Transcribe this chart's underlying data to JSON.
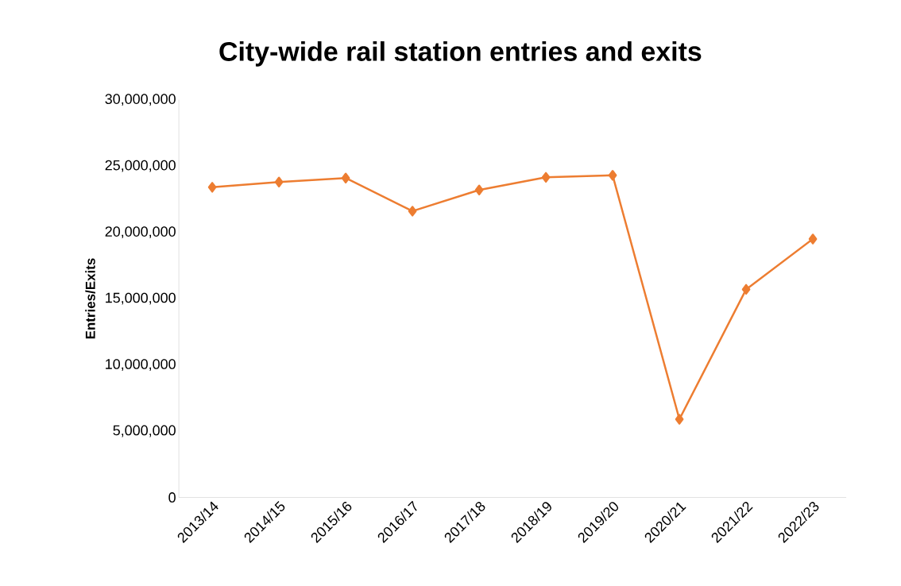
{
  "chart_data": {
    "type": "line",
    "title": "City-wide rail station entries and exits",
    "ylabel": "Entries/Exits",
    "categories": [
      "2013/14",
      "2014/15",
      "2015/16",
      "2016/17",
      "2017/18",
      "2018/19",
      "2019/20",
      "2020/21",
      "2021/22",
      "2022/23"
    ],
    "series": [
      {
        "color": "#ed7d31",
        "values": [
          23400000,
          23800000,
          24100000,
          21600000,
          23200000,
          24150000,
          24300000,
          5900000,
          15700000,
          19500000
        ]
      }
    ],
    "ylim": [
      0,
      30000000
    ],
    "yticks": [
      {
        "value": 0,
        "label": "0"
      },
      {
        "value": 5000000,
        "label": "5,000,000"
      },
      {
        "value": 10000000,
        "label": "10,000,000"
      },
      {
        "value": 15000000,
        "label": "15,000,000"
      },
      {
        "value": 20000000,
        "label": "20,000,000"
      },
      {
        "value": 25000000,
        "label": "25,000,000"
      },
      {
        "value": 30000000,
        "label": "30,000,000"
      }
    ],
    "grid": false,
    "marker": "diamond",
    "line_style": "solid"
  }
}
